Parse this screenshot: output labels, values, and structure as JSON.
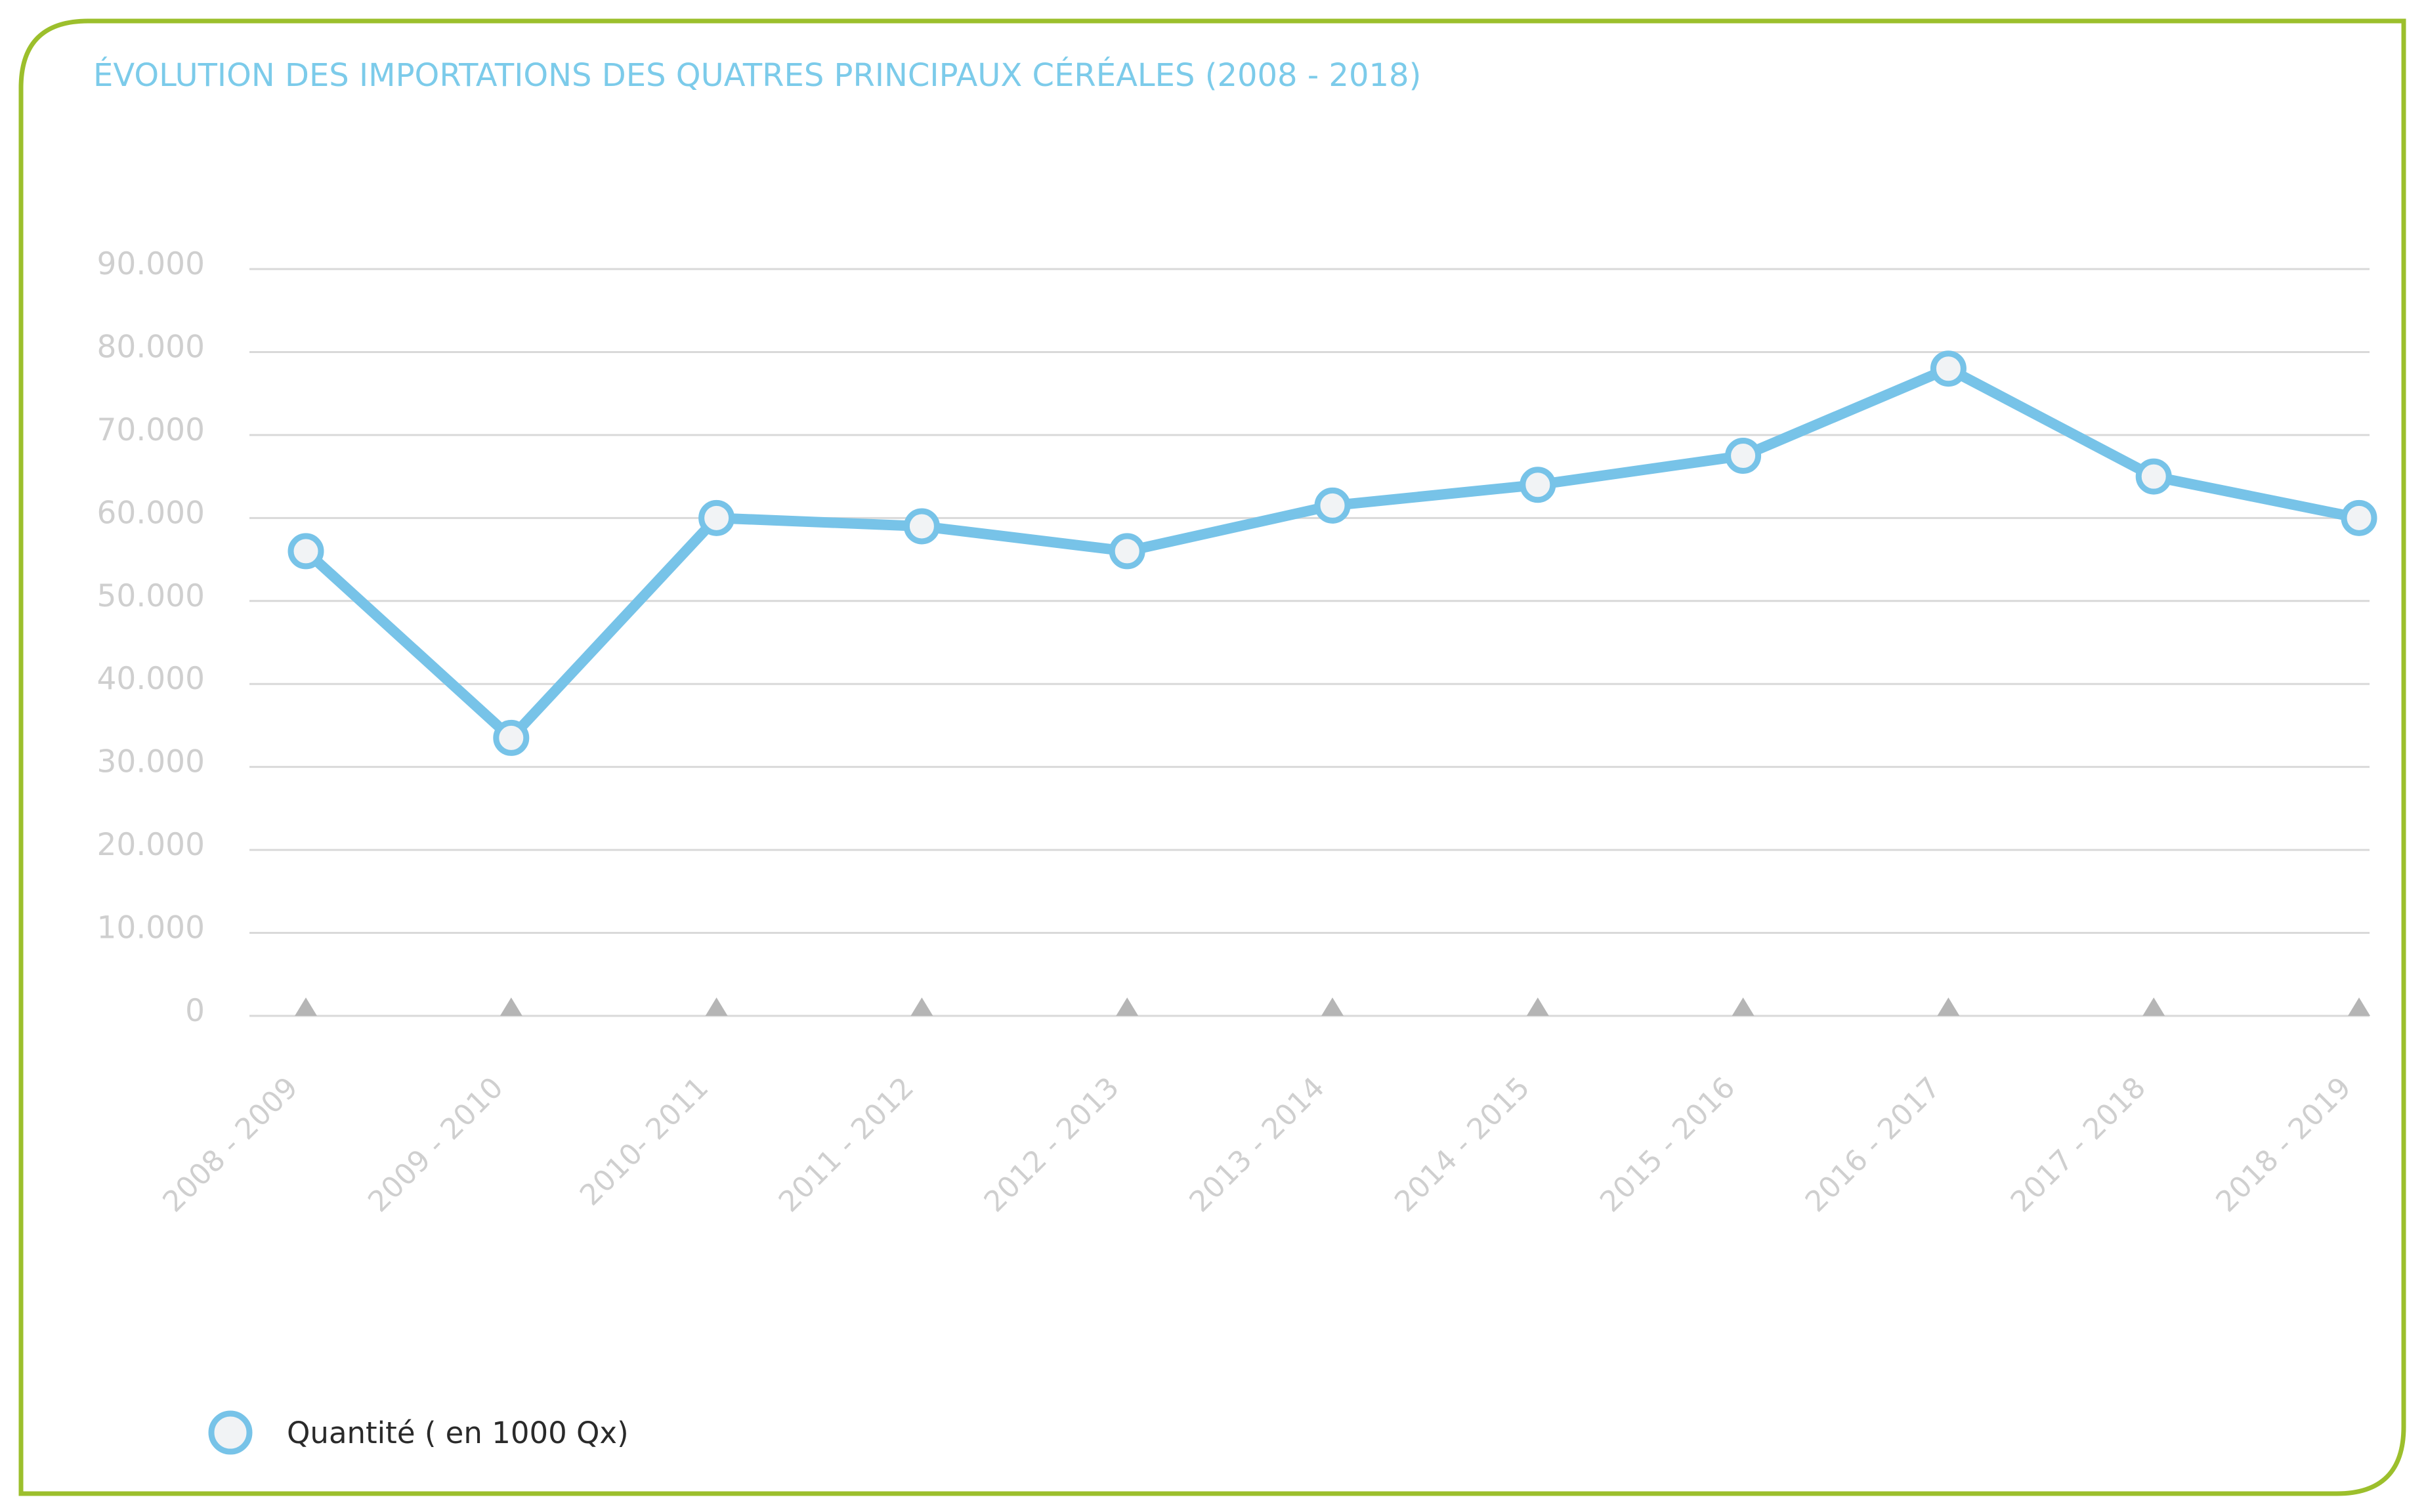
{
  "chart_data": {
    "type": "line",
    "title": "ÉVOLUTION DES IMPORTATIONS DES QUATRES PRINCIPAUX CÉRÉALES (2008 - 2018)",
    "xlabel": "",
    "ylabel": "",
    "categories": [
      "2008 - 2009",
      "2009 - 2010",
      "2010- 2011",
      "2011 - 2012",
      "2012 - 2013",
      "2013 - 2014",
      "2014 - 2015",
      "2015 - 2016",
      "2016 - 2017",
      "2017 - 2018",
      "2018 - 2019"
    ],
    "series": [
      {
        "name": "Quantité ( en 1000 Qx)",
        "values": [
          56000,
          33500,
          60000,
          59000,
          56000,
          61500,
          64000,
          67500,
          78000,
          65000,
          60000
        ],
        "color": "#77c3e8"
      }
    ],
    "yticks": [
      "0",
      "10.000",
      "20.000",
      "30.000",
      "40.000",
      "50.000",
      "60.000",
      "70.000",
      "80.000",
      "90.000"
    ],
    "ylim": [
      0,
      90000
    ],
    "grid": true,
    "legend": "bottom-left",
    "colors": {
      "frame": "#9cbf2c",
      "title": "#7ccbea",
      "grid": "#d9d9d9",
      "ticks": "#cfcfcf",
      "marker": "#b5b5b5"
    }
  }
}
